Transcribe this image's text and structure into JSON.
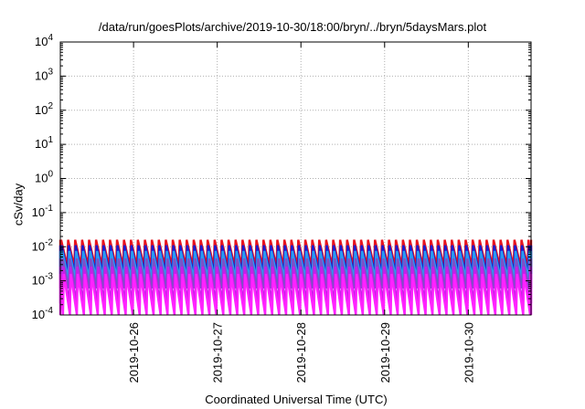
{
  "chart_data": {
    "type": "line",
    "title": "/data/run/goesPlots/archive/2019-10-30/18:00/bryn/../bryn/5daysMars.plot",
    "xlabel": "Coordinated Universal Time (UTC)",
    "ylabel": "cSv/day",
    "yscale": "log",
    "ylim": [
      0.0001,
      10000
    ],
    "y_ticks": [
      {
        "exp": 4,
        "base": "10",
        "sup": "4"
      },
      {
        "exp": 3,
        "base": "10",
        "sup": "3"
      },
      {
        "exp": 2,
        "base": "10",
        "sup": "2"
      },
      {
        "exp": 1,
        "base": "10",
        "sup": "1"
      },
      {
        "exp": 0,
        "base": "10",
        "sup": "0"
      },
      {
        "exp": -1,
        "base": "10",
        "sup": "-1"
      },
      {
        "exp": -2,
        "base": "10",
        "sup": "-2"
      },
      {
        "exp": -3,
        "base": "10",
        "sup": "-3"
      },
      {
        "exp": -4,
        "base": "10",
        "sup": "-4"
      }
    ],
    "xlim": [
      "2019-10-25T03:00",
      "2019-10-30T18:00"
    ],
    "x_ticks": [
      "2019-10-26",
      "2019-10-27",
      "2019-10-28",
      "2019-10-29",
      "2019-10-30"
    ],
    "grid": true,
    "sawtooth_period_hours": 2.0,
    "series": [
      {
        "color": "#e8141e",
        "peak": 0.016,
        "trough": 0.0026,
        "phase_hours": 0.0
      },
      {
        "color": "#1a1ad0",
        "peak": 0.011,
        "trough": 0.0016,
        "phase_hours": 0.15
      },
      {
        "color": "#2a9af0",
        "peak": 0.0075,
        "trough": 0.0011,
        "phase_hours": 0.3
      },
      {
        "color": "#7b52c8",
        "peak": 0.0045,
        "trough": 0.0006,
        "phase_hours": 0.45
      },
      {
        "color": "#c81ee8",
        "peak": 0.0026,
        "trough": 0.00022,
        "phase_hours": 0.6
      },
      {
        "color": "#ff22ff",
        "peak": 0.0016,
        "trough": 0.0001,
        "phase_hours": 0.75
      }
    ]
  }
}
